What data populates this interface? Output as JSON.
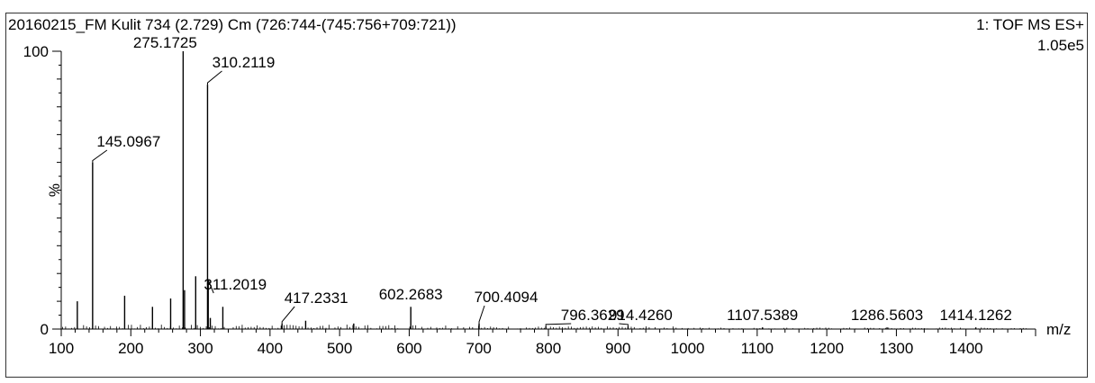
{
  "header": {
    "title": "20160215_FM Kulit 734 (2.729) Cm (726:744-(745:756+709:721))",
    "instrument": "1: TOF MS ES+",
    "intensity": "1.05e5"
  },
  "chart_data": {
    "type": "bar",
    "xlabel": "m/z",
    "ylabel": "%",
    "xlim": [
      100,
      1500
    ],
    "ylim": [
      0,
      100
    ],
    "x_ticks": [
      100,
      200,
      300,
      400,
      500,
      600,
      700,
      800,
      900,
      1000,
      1100,
      1200,
      1300,
      1400
    ],
    "y_ticks": [
      0,
      100
    ],
    "peaks": [
      {
        "mz": 123.1,
        "rel": 10
      },
      {
        "mz": 145.0967,
        "rel": 60,
        "label": "145.0967"
      },
      {
        "mz": 191.1,
        "rel": 12
      },
      {
        "mz": 231.1,
        "rel": 8
      },
      {
        "mz": 257.2,
        "rel": 11
      },
      {
        "mz": 275.1725,
        "rel": 100,
        "label": "275.1725"
      },
      {
        "mz": 277.2,
        "rel": 14
      },
      {
        "mz": 293.2,
        "rel": 19
      },
      {
        "mz": 310.2119,
        "rel": 88,
        "label": "310.2119"
      },
      {
        "mz": 311.2019,
        "rel": 17,
        "label": "311.2019"
      },
      {
        "mz": 314.2,
        "rel": 4
      },
      {
        "mz": 332.2,
        "rel": 8
      },
      {
        "mz": 417.2331,
        "rel": 2,
        "label": "417.2331"
      },
      {
        "mz": 451.2,
        "rel": 3
      },
      {
        "mz": 520.3,
        "rel": 2
      },
      {
        "mz": 602.2683,
        "rel": 8,
        "label": "602.2683"
      },
      {
        "mz": 700.4094,
        "rel": 2,
        "label": "700.4094"
      },
      {
        "mz": 796.3629,
        "rel": 1,
        "label": "796.3629"
      },
      {
        "mz": 914.426,
        "rel": 1,
        "label": "914.4260"
      },
      {
        "mz": 1107.5389,
        "rel": 0.5,
        "label": "1107.5389"
      },
      {
        "mz": 1286.5603,
        "rel": 0.5,
        "label": "1286.5603"
      },
      {
        "mz": 1414.1262,
        "rel": 0.5,
        "label": "1414.1262"
      }
    ]
  }
}
